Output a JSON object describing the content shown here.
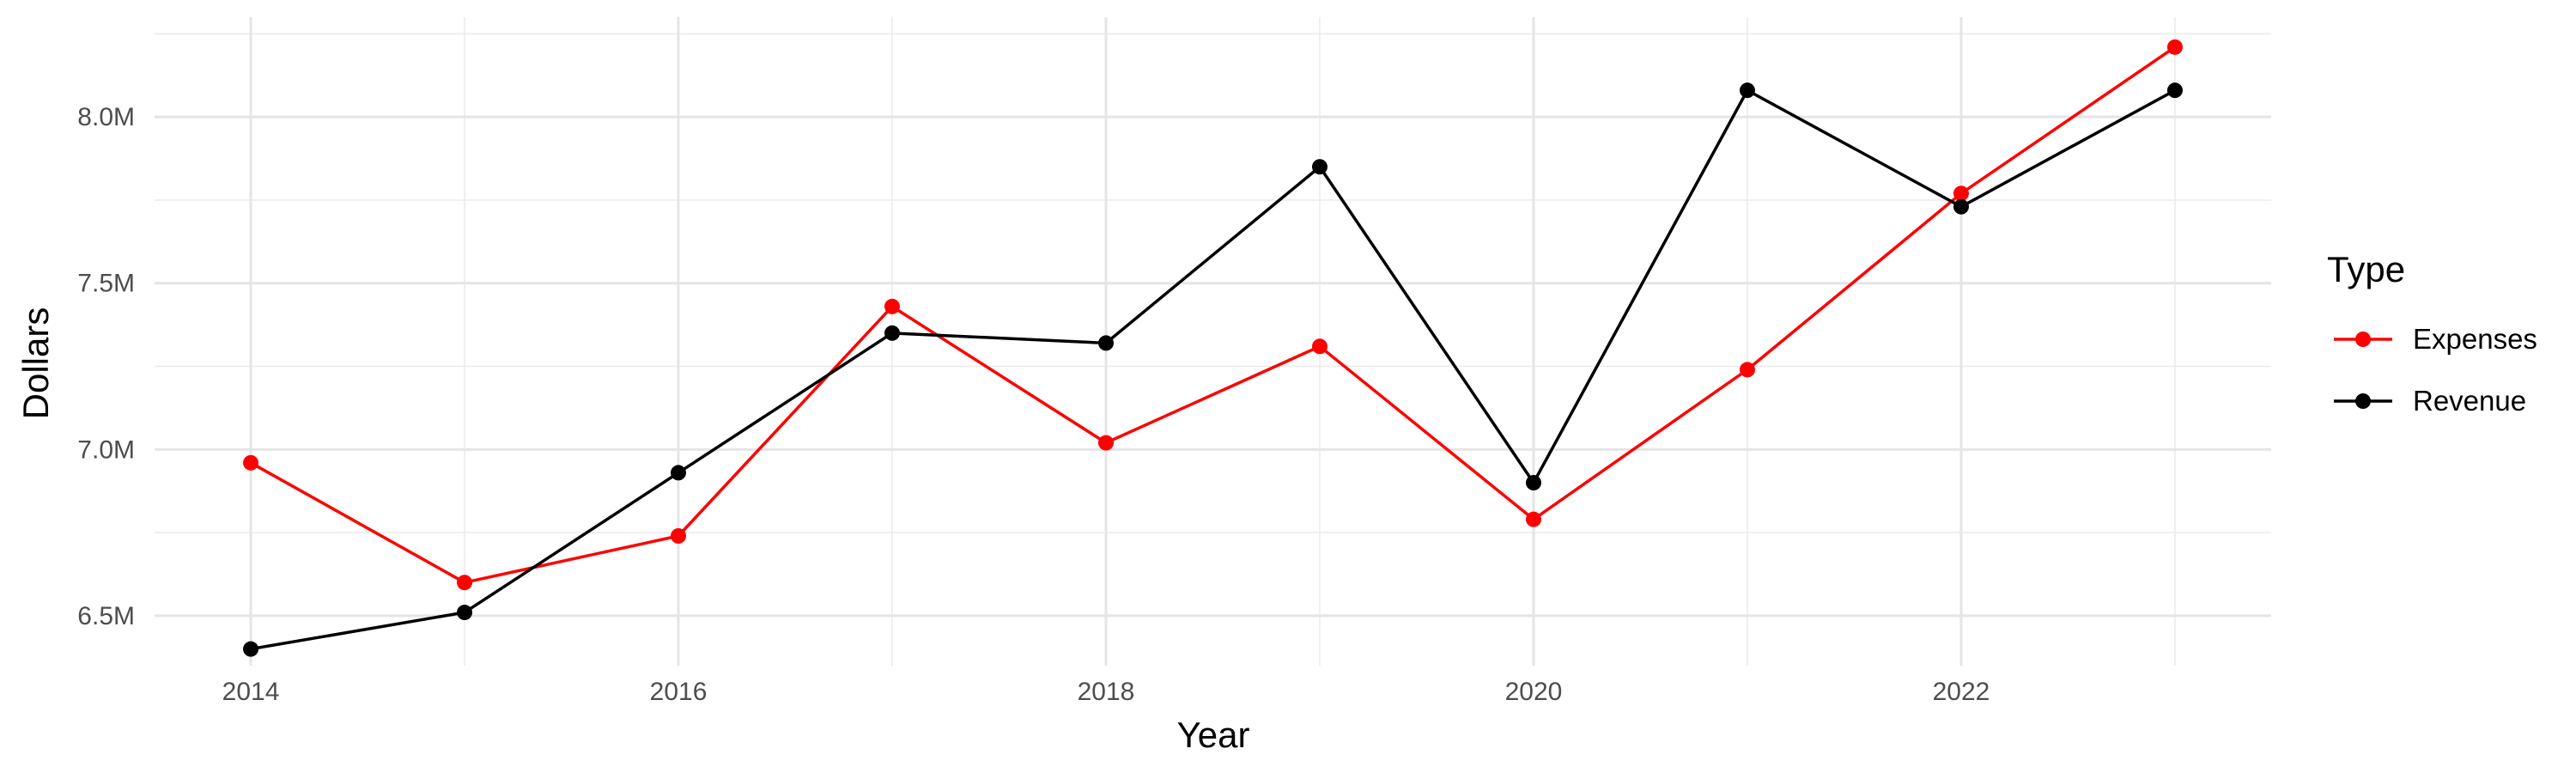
{
  "chart_data": {
    "type": "line",
    "title": "",
    "xlabel": "Year",
    "ylabel": "Dollars",
    "x": [
      2014,
      2015,
      2016,
      2017,
      2018,
      2019,
      2020,
      2021,
      2022,
      2023
    ],
    "xlim": [
      2013.55,
      2023.45
    ],
    "ylim": [
      6.35,
      8.3
    ],
    "x_ticks": [
      2014,
      2016,
      2018,
      2020,
      2022
    ],
    "x_tick_labels": [
      "2014",
      "2016",
      "2018",
      "2020",
      "2022"
    ],
    "y_ticks": [
      6.5,
      7.0,
      7.5,
      8.0
    ],
    "y_tick_labels": [
      "6.5M",
      "7.0M",
      "7.5M",
      "8.0M"
    ],
    "y_unit": "millions of dollars",
    "grid": true,
    "legend": {
      "title": "Type",
      "placement": "right",
      "entries": [
        "Expenses",
        "Revenue"
      ]
    },
    "series": [
      {
        "name": "Expenses",
        "color": "#ff0000",
        "values": [
          6.96,
          6.6,
          6.74,
          7.43,
          7.02,
          7.31,
          6.79,
          7.24,
          7.77,
          8.21
        ]
      },
      {
        "name": "Revenue",
        "color": "#000000",
        "values": [
          6.4,
          6.51,
          6.93,
          7.35,
          7.32,
          7.85,
          6.9,
          8.08,
          7.73,
          8.08
        ]
      }
    ]
  }
}
